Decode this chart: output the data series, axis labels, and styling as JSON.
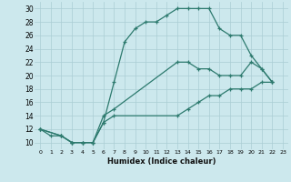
{
  "xlabel": "Humidex (Indice chaleur)",
  "bg_color": "#cce8ed",
  "grid_color": "#aacdd4",
  "line_color": "#2d7a6e",
  "xlim": [
    -0.5,
    23.5
  ],
  "ylim": [
    9,
    31
  ],
  "xticks": [
    0,
    1,
    2,
    3,
    4,
    5,
    6,
    7,
    8,
    9,
    10,
    11,
    12,
    13,
    14,
    15,
    16,
    17,
    18,
    19,
    20,
    21,
    22,
    23
  ],
  "yticks": [
    10,
    12,
    14,
    16,
    18,
    20,
    22,
    24,
    26,
    28,
    30
  ],
  "curve1_x": [
    0,
    1,
    2,
    3,
    4,
    5,
    6,
    7,
    8,
    9,
    10,
    11,
    12,
    13,
    14,
    15,
    16,
    17,
    18,
    19,
    20,
    21,
    22
  ],
  "curve1_y": [
    12,
    11,
    11,
    10,
    10,
    10,
    13,
    19,
    25,
    27,
    28,
    28,
    29,
    30,
    30,
    30,
    30,
    27,
    26,
    26,
    23,
    21,
    19
  ],
  "curve2_x": [
    0,
    2,
    3,
    4,
    5,
    6,
    7,
    13,
    14,
    15,
    16,
    17,
    18,
    19,
    20,
    21,
    22
  ],
  "curve2_y": [
    12,
    11,
    10,
    10,
    10,
    14,
    15,
    22,
    22,
    21,
    21,
    20,
    20,
    20,
    22,
    21,
    19
  ],
  "curve3_x": [
    0,
    2,
    3,
    4,
    5,
    6,
    7,
    13,
    14,
    15,
    16,
    17,
    18,
    19,
    20,
    21,
    22
  ],
  "curve3_y": [
    12,
    11,
    10,
    10,
    10,
    13,
    14,
    14,
    15,
    16,
    17,
    17,
    18,
    18,
    18,
    19,
    19
  ]
}
